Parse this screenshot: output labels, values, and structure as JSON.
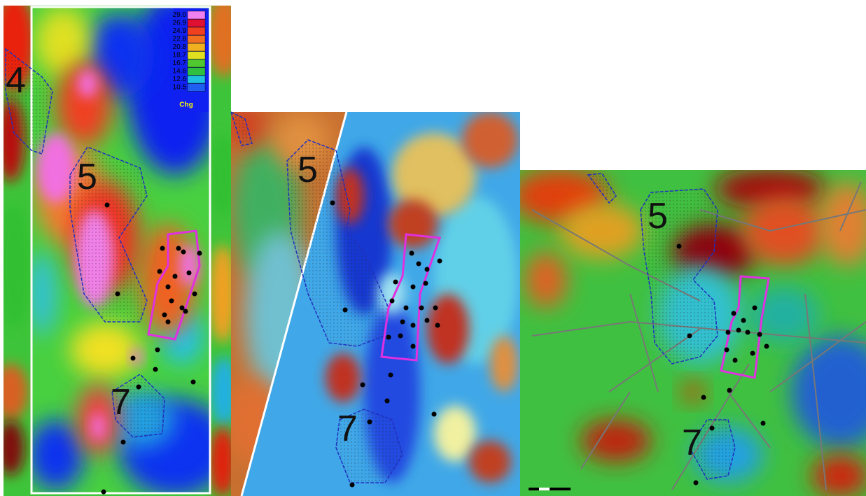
{
  "legend": {
    "title": "Chg",
    "entries": [
      "29.0",
      "26.9",
      "24.9",
      "22.8",
      "20.8",
      "18.7",
      "16.7",
      "14.6",
      "12.6",
      "10.5"
    ]
  },
  "panels": [
    {
      "zone_labels": [
        "4",
        "5",
        "7"
      ]
    },
    {
      "zone_labels": [
        "5",
        "7"
      ]
    },
    {
      "zone_labels": [
        "5",
        "7"
      ]
    }
  ]
}
